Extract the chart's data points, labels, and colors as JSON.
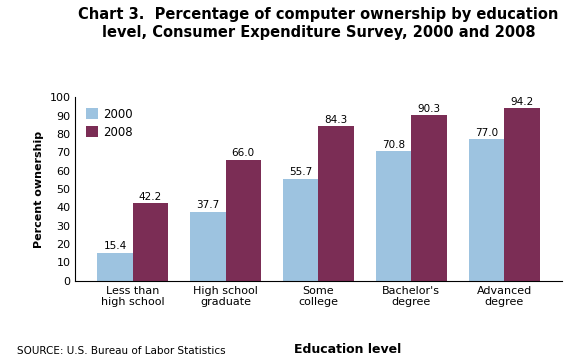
{
  "title_line1": "Chart 3.  Percentage of computer ownership by education",
  "title_line2": "level, Consumer Expenditure Survey, 2000 and 2008",
  "categories": [
    "Less than\nhigh school",
    "High school\ngraduate",
    "Some\ncollege",
    "Bachelor's\ndegree",
    "Advanced\ndegree"
  ],
  "values_2000": [
    15.4,
    37.7,
    55.7,
    70.8,
    77.0
  ],
  "values_2008": [
    42.2,
    66.0,
    84.3,
    90.3,
    94.2
  ],
  "color_2000": "#9DC3E0",
  "color_2008": "#7B2D55",
  "ylabel": "Percent ownership",
  "xlabel": "Education level",
  "ylim": [
    0,
    100
  ],
  "yticks": [
    0,
    10,
    20,
    30,
    40,
    50,
    60,
    70,
    80,
    90,
    100
  ],
  "legend_labels": [
    "2000",
    "2008"
  ],
  "source_text": "SOURCE: U.S. Bureau of Labor Statistics",
  "bar_width": 0.38,
  "title_fontsize": 10.5,
  "label_fontsize": 8,
  "tick_fontsize": 8,
  "value_fontsize": 7.5,
  "legend_fontsize": 8.5,
  "source_fontsize": 7.5,
  "xlabel_fontsize": 9
}
